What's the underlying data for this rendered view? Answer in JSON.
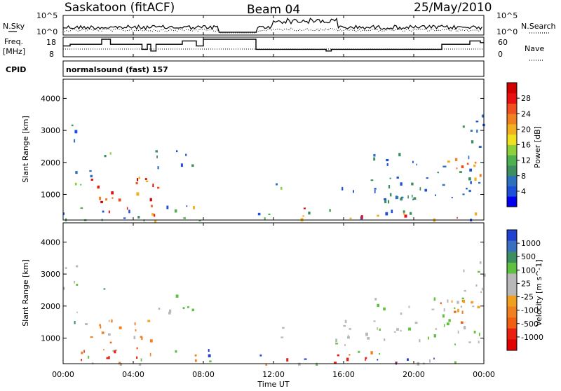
{
  "chart_data": {
    "type": "heatmap",
    "station": "Saskatoon (fitACF)",
    "beam": "Beam 04",
    "date": "25/May/2010",
    "xlabel": "Time UT",
    "x_ticks": [
      "00:00",
      "04:00",
      "08:00",
      "12:00",
      "16:00",
      "20:00",
      "00:00"
    ],
    "x_range_hours": [
      0,
      24
    ],
    "time_series_panel": {
      "left_label": "N.Sky",
      "right_label": "N.Search",
      "left_ticks": [
        "10^5",
        "10^0"
      ],
      "right_ticks": [
        "10^5",
        "10^0"
      ]
    },
    "freq_panel": {
      "left_label": "Freq.",
      "left_unit": "[MHz]",
      "right_label": "Nave",
      "left_ticks": [
        18,
        8
      ],
      "right_ticks": [
        60,
        0
      ],
      "freq_steps": [
        {
          "t": 0.0,
          "v": 14
        },
        {
          "t": 0.4,
          "v": 15
        },
        {
          "t": 2.2,
          "v": 18
        },
        {
          "t": 2.7,
          "v": 15
        },
        {
          "t": 4.5,
          "v": 12
        },
        {
          "t": 4.8,
          "v": 15
        },
        {
          "t": 5.0,
          "v": 11
        },
        {
          "t": 5.3,
          "v": 15
        },
        {
          "t": 6.8,
          "v": 17
        },
        {
          "t": 7.6,
          "v": 14
        },
        {
          "t": 8.0,
          "v": 18
        },
        {
          "t": 8.8,
          "v": 18
        },
        {
          "t": 11.0,
          "v": 12
        },
        {
          "t": 15.0,
          "v": 11
        },
        {
          "t": 15.3,
          "v": 12
        },
        {
          "t": 21.6,
          "v": 15
        },
        {
          "t": 23.2,
          "v": 17
        },
        {
          "t": 23.8,
          "v": 16
        }
      ],
      "nave_level": 14
    },
    "cpid": {
      "label": "CPID",
      "value": "normalsound (fast) 157"
    },
    "power_panel": {
      "ylabel": "Slant Range [km]",
      "y_ticks": [
        1000,
        2000,
        3000,
        4000
      ],
      "ylim": [
        200,
        4600
      ],
      "colorbar_label": "Power [dB]",
      "colorbar_ticks": [
        4,
        8,
        12,
        16,
        20,
        24,
        28
      ],
      "colors": [
        "#0000ee",
        "#1d4fd8",
        "#2f6fbf",
        "#3d8f5f",
        "#4fb050",
        "#8fd03a",
        "#f0e020",
        "#f0b020",
        "#f08020",
        "#f05020",
        "#e81010",
        "#d00000"
      ]
    },
    "velocity_panel": {
      "ylabel": "Slant Range [km]",
      "y_ticks": [
        1000,
        2000,
        3000,
        4000
      ],
      "ylim": [
        200,
        4600
      ],
      "colorbar_label": "Velocity [m s^-1]",
      "colorbar_ticks": [
        1000,
        500,
        100,
        25,
        -25,
        -100,
        -500,
        -1000
      ],
      "colors": [
        "#2040d0",
        "#3b6fc0",
        "#3d8f5f",
        "#60c040",
        "#b8b8b8",
        "#b8b8b8",
        "#f0a020",
        "#f08020",
        "#f06010",
        "#e82010",
        "#e00000"
      ]
    },
    "scatter_regions": [
      {
        "t0": 0.0,
        "t1": 0.8,
        "r0": 2400,
        "r1": 3500,
        "p": "blue"
      },
      {
        "t0": 0.1,
        "t1": 1.6,
        "r0": 1300,
        "r1": 1900,
        "p": "green"
      },
      {
        "t0": 1.5,
        "t1": 5.5,
        "r0": 600,
        "r1": 1600,
        "p": "strong"
      },
      {
        "t0": 2.3,
        "t1": 3.0,
        "r0": 2100,
        "r1": 2600,
        "p": "green"
      },
      {
        "t0": 5.2,
        "t1": 7.5,
        "r0": 1800,
        "r1": 2400,
        "p": "blue"
      },
      {
        "t0": 0.0,
        "t1": 8.8,
        "r0": 200,
        "r1": 700,
        "p": "mixed"
      },
      {
        "t0": 11.0,
        "t1": 24.0,
        "r0": 200,
        "r1": 600,
        "p": "mixed"
      },
      {
        "t0": 11.9,
        "t1": 12.5,
        "r0": 800,
        "r1": 1500,
        "p": "green"
      },
      {
        "t0": 15.5,
        "t1": 24.0,
        "r0": 800,
        "r1": 1600,
        "p": "blue"
      },
      {
        "t0": 17.5,
        "t1": 23.5,
        "r0": 1700,
        "r1": 2300,
        "p": "blue"
      },
      {
        "t0": 21.5,
        "t1": 24.0,
        "r0": 1500,
        "r1": 2200,
        "p": "orange"
      },
      {
        "t0": 22.7,
        "t1": 24.0,
        "r0": 2400,
        "r1": 3500,
        "p": "blue"
      }
    ]
  }
}
